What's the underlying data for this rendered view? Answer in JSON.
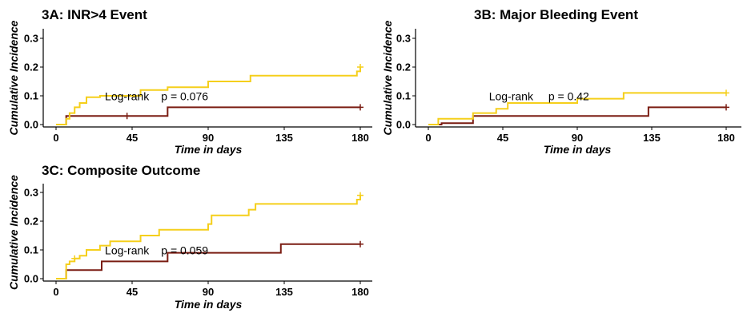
{
  "chart_data": [
    {
      "type": "line",
      "title": "3A: INR>4 Event",
      "xlabel": "Time in days",
      "ylabel": "Cumulative Incidence",
      "xlim": [
        0,
        180
      ],
      "ylim": [
        0,
        0.3
      ],
      "xticks": [
        "0",
        "45",
        "90",
        "135",
        "180"
      ],
      "yticks": [
        "0.0",
        "0.1",
        "0.2",
        "0.3"
      ],
      "annotation": {
        "label": "Log-rank",
        "pvalue": "p = 0.076"
      },
      "colors": {
        "yellow": "#F5CF1B",
        "darkred": "#7A1C12"
      },
      "series": [
        {
          "color": "yellow",
          "censor_marks": [
            180
          ],
          "x": [
            0,
            6,
            8,
            11,
            14,
            18,
            26,
            50,
            66,
            90,
            115,
            178,
            180
          ],
          "y": [
            0,
            0.02,
            0.04,
            0.06,
            0.075,
            0.095,
            0.1,
            0.12,
            0.13,
            0.15,
            0.17,
            0.185,
            0.2
          ]
        },
        {
          "color": "darkred",
          "censor_marks": [
            42,
            180
          ],
          "x": [
            0,
            6,
            66,
            180
          ],
          "y": [
            0,
            0.03,
            0.06,
            0.06
          ]
        }
      ]
    },
    {
      "type": "line",
      "title": "3B: Major Bleeding Event",
      "xlabel": "Time in days",
      "ylabel": "Cumulative Incidence",
      "xlim": [
        0,
        180
      ],
      "ylim": [
        0,
        0.3
      ],
      "xticks": [
        "0",
        "45",
        "90",
        "135",
        "180"
      ],
      "yticks": [
        "0.0",
        "0.1",
        "0.2",
        "0.3"
      ],
      "annotation": {
        "label": "Log-rank",
        "pvalue": "p = 0.42"
      },
      "colors": {
        "yellow": "#F5CF1B",
        "darkred": "#7A1C12"
      },
      "series": [
        {
          "color": "yellow",
          "censor_marks": [
            180
          ],
          "x": [
            0,
            6,
            27,
            41,
            48,
            68,
            90,
            118,
            180
          ],
          "y": [
            0,
            0.02,
            0.04,
            0.055,
            0.075,
            0.075,
            0.09,
            0.11,
            0.11
          ]
        },
        {
          "color": "darkred",
          "censor_marks": [
            180
          ],
          "x": [
            0,
            8,
            27,
            42,
            133,
            180
          ],
          "y": [
            0,
            0.005,
            0.03,
            0.03,
            0.06,
            0.06
          ]
        }
      ]
    },
    {
      "type": "line",
      "title": "3C: Composite Outcome",
      "xlabel": "Time in days",
      "ylabel": "Cumulative Incidence",
      "xlim": [
        0,
        180
      ],
      "ylim": [
        0,
        0.3
      ],
      "xticks": [
        "0",
        "45",
        "90",
        "135",
        "180"
      ],
      "yticks": [
        "0.0",
        "0.1",
        "0.2",
        "0.3"
      ],
      "annotation": {
        "label": "Log-rank",
        "pvalue": "p = 0.059"
      },
      "colors": {
        "yellow": "#F5CF1B",
        "darkred": "#7A1C12"
      },
      "series": [
        {
          "color": "yellow",
          "censor_marks": [
            11,
            180
          ],
          "x": [
            0,
            6,
            8,
            11,
            14,
            18,
            26,
            32,
            50,
            61,
            90,
            92,
            114,
            118,
            178,
            180
          ],
          "y": [
            0,
            0.05,
            0.06,
            0.07,
            0.08,
            0.1,
            0.115,
            0.13,
            0.15,
            0.17,
            0.19,
            0.22,
            0.24,
            0.26,
            0.275,
            0.29
          ]
        },
        {
          "color": "darkred",
          "censor_marks": [
            180
          ],
          "x": [
            0,
            6,
            27,
            66,
            90,
            133,
            180
          ],
          "y": [
            0,
            0.03,
            0.06,
            0.09,
            0.09,
            0.12,
            0.12
          ]
        }
      ]
    }
  ]
}
